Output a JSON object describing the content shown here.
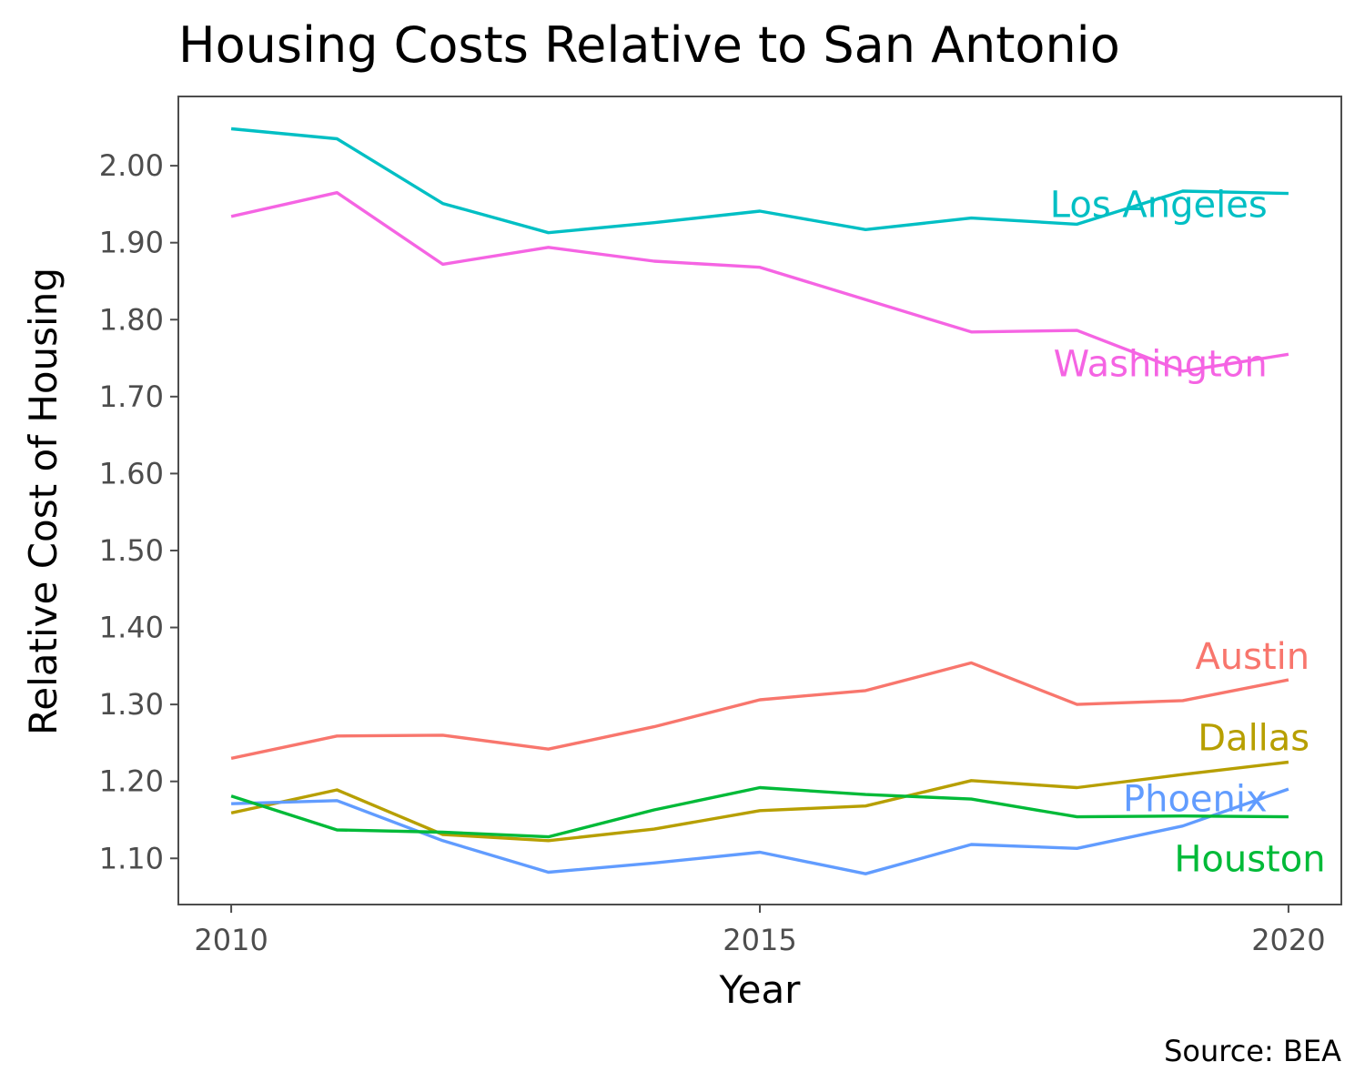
{
  "chart_data": {
    "type": "line",
    "title": "Housing Costs Relative to San Antonio",
    "xlabel": "Year",
    "ylabel": "Relative Cost of Housing",
    "caption": "Source: BEA",
    "xlim": [
      2009.5,
      2020.5
    ],
    "ylim": [
      1.04,
      2.09
    ],
    "x": [
      2010,
      2011,
      2012,
      2013,
      2014,
      2015,
      2016,
      2017,
      2018,
      2019,
      2020
    ],
    "x_ticks": [
      {
        "value": 2010,
        "label": "2010"
      },
      {
        "value": 2015,
        "label": "2015"
      },
      {
        "value": 2020,
        "label": "2020"
      }
    ],
    "y_ticks": [
      {
        "value": 2.0,
        "label": "2.00"
      },
      {
        "value": 1.9,
        "label": "1.90"
      },
      {
        "value": 1.8,
        "label": "1.80"
      },
      {
        "value": 1.7,
        "label": "1.70"
      },
      {
        "value": 1.6,
        "label": "1.60"
      },
      {
        "value": 1.5,
        "label": "1.50"
      },
      {
        "value": 1.4,
        "label": "1.40"
      },
      {
        "value": 1.3,
        "label": "1.30"
      },
      {
        "value": 1.2,
        "label": "1.20"
      },
      {
        "value": 1.1,
        "label": "1.10"
      }
    ],
    "grid": false,
    "legend": "direct labels at line ends",
    "series": [
      {
        "name": "Los Angeles",
        "color": "#00BFC4",
        "label_anchor": "end",
        "label_at": [
          2019.8,
          1.95
        ],
        "values": [
          2.048,
          2.035,
          1.951,
          1.913,
          1.926,
          1.941,
          1.917,
          1.932,
          1.924,
          1.967,
          1.964
        ]
      },
      {
        "name": "Washington",
        "color": "#F564E3",
        "label_anchor": "end",
        "label_at": [
          2019.8,
          1.743
        ],
        "values": [
          1.934,
          1.965,
          1.872,
          1.894,
          1.876,
          1.868,
          1.826,
          1.784,
          1.786,
          1.733,
          1.755
        ]
      },
      {
        "name": "Austin",
        "color": "#F8766D",
        "label_anchor": "end",
        "label_at": [
          2020.2,
          1.363
        ],
        "values": [
          1.23,
          1.259,
          1.26,
          1.242,
          1.271,
          1.306,
          1.318,
          1.354,
          1.3,
          1.305,
          1.332
        ]
      },
      {
        "name": "Dallas",
        "color": "#B79F00",
        "label_anchor": "end",
        "label_at": [
          2020.2,
          1.257
        ],
        "values": [
          1.159,
          1.189,
          1.131,
          1.123,
          1.138,
          1.162,
          1.168,
          1.201,
          1.192,
          1.209,
          1.225
        ]
      },
      {
        "name": "Phoenix",
        "color": "#619CFF",
        "label_anchor": "end",
        "label_at": [
          2019.8,
          1.178
        ],
        "values": [
          1.171,
          1.175,
          1.123,
          1.082,
          1.094,
          1.108,
          1.08,
          1.118,
          1.113,
          1.142,
          1.19
        ]
      },
      {
        "name": "Houston",
        "color": "#00BA38",
        "label_anchor": "end",
        "label_at": [
          2020.35,
          1.1
        ],
        "values": [
          1.181,
          1.137,
          1.134,
          1.128,
          1.163,
          1.192,
          1.183,
          1.177,
          1.154,
          1.155,
          1.154
        ]
      }
    ]
  }
}
